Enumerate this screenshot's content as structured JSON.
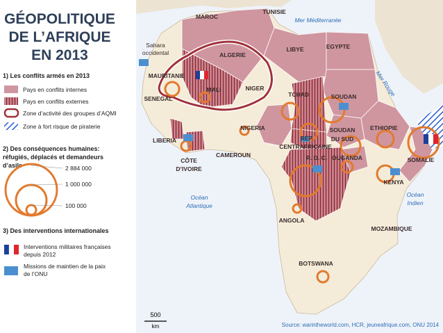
{
  "title_lines": [
    "GÉOPOLITIQUE",
    "DE L’AFRIQUE",
    "EN 2013"
  ],
  "legend": {
    "section1": {
      "heading": "1) Les conflits armés en 2013",
      "items": [
        "Pays en conflits internes",
        "Pays en conflits externes",
        "Zone d’activité des groupes d’AQMI",
        "Zone à fort risque de piraterie"
      ]
    },
    "section2": {
      "heading_lines": [
        "2) Des conséquences humaines:",
        "réfugiés, déplacés et demandeurs",
        "d’asile"
      ],
      "sizes": [
        "2 884 000",
        "1 000 000",
        "100 000"
      ]
    },
    "section3": {
      "heading": "3) Des interventions internationales",
      "items": [
        [
          "Interventions militaires françaises",
          "depuis 2012"
        ],
        [
          "Missions de maintien de la paix",
          "de l’ONU"
        ]
      ]
    }
  },
  "labels": {
    "maroc": "MAROC",
    "tunisie": "TUNISIE",
    "sahara": [
      "Sahara",
      "occidental"
    ],
    "algerie": "ALGERIE",
    "libye": "LIBYE",
    "egypte": "EGYPTE",
    "mauritanie": "MAURITANIE",
    "mali": "MALI",
    "niger": "NIGER",
    "tchad": "TCHAD",
    "soudan": "SOUDAN",
    "senegal": "SENEGAL",
    "nigeria": "NIGERIA",
    "soudan_sud": [
      "SOUDAN",
      "DU SUD"
    ],
    "ethiopie": "ETHIOPIE",
    "liberia": "LIBERIA",
    "rca": [
      "RÉP.",
      "CENTRAFRICAINE"
    ],
    "cameroun": "CAMEROUN",
    "ouganda": "OUGANDA",
    "somalie": "SOMALIE",
    "cote_ivoire": [
      "CÔTE",
      "D’IVOIRE"
    ],
    "rdc": "R. D. C.",
    "kenya": "KENYA",
    "angola": "ANGOLA",
    "mozambique": "MOZAMBIQUE",
    "botswana": "BOTSWANA"
  },
  "seas": {
    "mediterranee": "Mer Méditerranée",
    "rouge": "Mer Rouge",
    "atlantique": [
      "Océan",
      "Atlantique"
    ],
    "indien": [
      "Océan",
      "Indien"
    ]
  },
  "scale": {
    "value": "500",
    "unit": "km"
  },
  "source": "Source: warintheworld.com, HCR, jeuneafrique.com, ONU 2014"
}
